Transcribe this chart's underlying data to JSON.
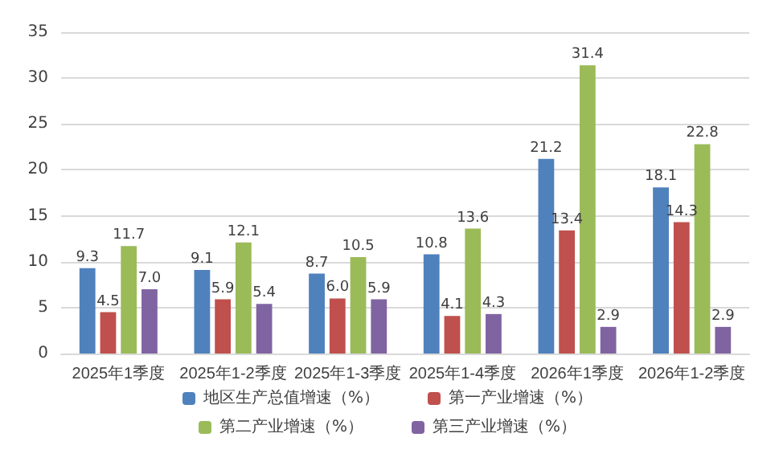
{
  "chart_data": {
    "type": "bar",
    "categories": [
      "2025年1季度",
      "2025年1-2季度",
      "2025年1-3季度",
      "2025年1-4季度",
      "2026年1季度",
      "2026年1-2季度"
    ],
    "series": [
      {
        "name": "地区生产总值增速（%）",
        "color": "#4f81bd",
        "values": [
          9.3,
          9.1,
          8.7,
          10.8,
          21.2,
          18.1
        ],
        "value_labels": [
          "9.3",
          "9.1",
          "8.7",
          "10.8",
          "21.2",
          "18.1"
        ]
      },
      {
        "name": "第一产业增速（%）",
        "color": "#c0504d",
        "values": [
          4.5,
          5.9,
          6.0,
          4.1,
          13.4,
          14.3
        ],
        "value_labels": [
          "4.5",
          "5.9",
          "6.0",
          "4.1",
          "13.4",
          "14.3"
        ]
      },
      {
        "name": "第二产业增速（%）",
        "color": "#9bbb59",
        "values": [
          11.7,
          12.1,
          10.5,
          13.6,
          31.4,
          22.8
        ],
        "value_labels": [
          "11.7",
          "12.1",
          "10.5",
          "13.6",
          "31.4",
          "22.8"
        ]
      },
      {
        "name": "第三产业增速（%）",
        "color": "#8064a2",
        "values": [
          7.0,
          5.4,
          5.9,
          4.3,
          2.9,
          2.9
        ],
        "value_labels": [
          "7.0",
          "5.4",
          "5.9",
          "4.3",
          "2.9",
          "2.9"
        ]
      }
    ],
    "ylim": [
      0,
      35
    ],
    "yticks": [
      0,
      5,
      10,
      15,
      20,
      25,
      30,
      35
    ],
    "grid": "y",
    "legend": "bottom"
  }
}
